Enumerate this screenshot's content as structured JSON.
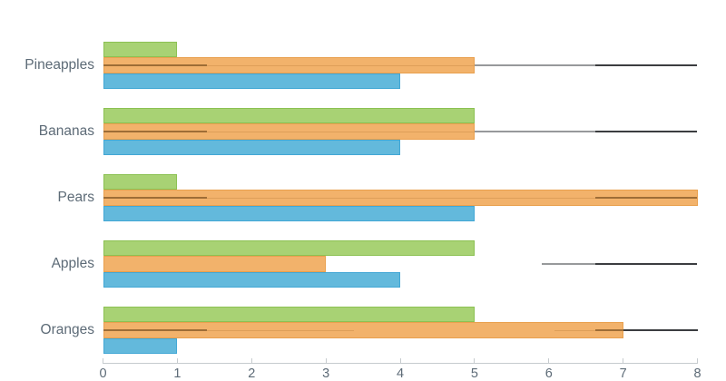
{
  "chart_data": {
    "type": "bar",
    "orientation": "horizontal",
    "title": "",
    "categories": [
      "Pineapples",
      "Bananas",
      "Pears",
      "Apples",
      "Oranges"
    ],
    "series": [
      {
        "name": "green",
        "color": "#a8d274",
        "border_color": "#8cc153",
        "values": [
          1,
          5,
          1,
          5,
          5
        ]
      },
      {
        "name": "orange",
        "color": "#f2b26b",
        "border_color": "#e9a04e",
        "values": [
          5,
          5,
          8,
          3,
          7
        ]
      },
      {
        "name": "blue",
        "color": "#63b9dc",
        "border_color": "#42a7d5",
        "values": [
          4,
          4,
          5,
          4,
          1
        ]
      }
    ],
    "range_lines": {
      "colors": {
        "gray": "#97999b",
        "black": "#3b3d40",
        "dark_on_bar": "#9e6d36",
        "faint_on_bar": "#de9f59"
      },
      "per_category": [
        [
          {
            "from": 0,
            "to": 1.4,
            "tone": "dark_on_bar"
          },
          {
            "from": 1.4,
            "to": 5,
            "tone": "faint_on_bar"
          },
          {
            "from": 5,
            "to": 6.62,
            "tone": "gray"
          },
          {
            "from": 6.62,
            "to": 8,
            "tone": "black"
          }
        ],
        [
          {
            "from": 0,
            "to": 1.4,
            "tone": "dark_on_bar"
          },
          {
            "from": 1.4,
            "to": 5,
            "tone": "faint_on_bar"
          },
          {
            "from": 5,
            "to": 6.62,
            "tone": "gray"
          },
          {
            "from": 6.62,
            "to": 8,
            "tone": "black"
          }
        ],
        [
          {
            "from": 0,
            "to": 1.4,
            "tone": "dark_on_bar"
          },
          {
            "from": 1.4,
            "to": 6.62,
            "tone": "faint_on_bar"
          },
          {
            "from": 6.62,
            "to": 8,
            "tone": "dark_on_bar"
          }
        ],
        [
          {
            "from": 5.9,
            "to": 6.62,
            "tone": "gray"
          },
          {
            "from": 6.62,
            "to": 8,
            "tone": "black"
          }
        ],
        [
          {
            "from": 0,
            "to": 1.4,
            "tone": "dark_on_bar"
          },
          {
            "from": 1.4,
            "to": 3.38,
            "tone": "faint_on_bar"
          },
          {
            "from": 6.08,
            "to": 6.62,
            "tone": "faint_on_bar"
          },
          {
            "from": 6.62,
            "to": 7,
            "tone": "dark_on_bar"
          },
          {
            "from": 7,
            "to": 8,
            "tone": "black"
          }
        ]
      ]
    },
    "x_axis": {
      "min": 0,
      "max": 8,
      "tick_labels": [
        "0",
        "1",
        "2",
        "3",
        "4",
        "5",
        "6",
        "7",
        "8"
      ],
      "line_color": "#c6cbce",
      "label_color": "#5d6b77"
    },
    "category_label_color": "#5d6b77",
    "background": "#ffffff",
    "legend": "none",
    "grid": "off"
  }
}
